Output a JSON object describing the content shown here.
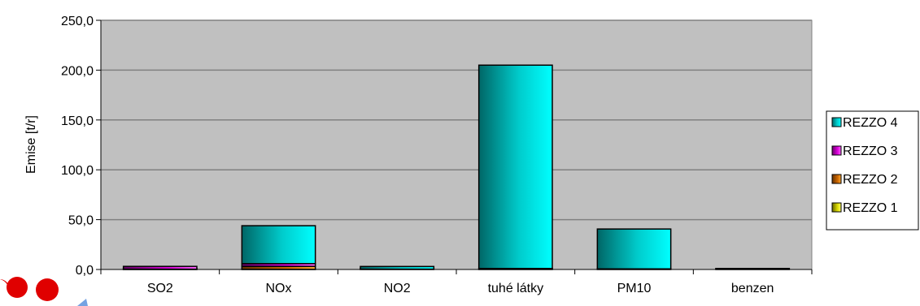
{
  "chart_data": {
    "type": "bar",
    "stacked": true,
    "categories": [
      "SO2",
      "NOx",
      "NO2",
      "tuhé látky",
      "PM10",
      "benzen"
    ],
    "series": [
      {
        "name": "REZZO 1",
        "color": "#FFFF00",
        "values": [
          0.1,
          0.1,
          0.0,
          0.0,
          0.0,
          0.0
        ]
      },
      {
        "name": "REZZO 2",
        "color": "#CC6600",
        "values": [
          0.2,
          3.0,
          0.0,
          0.5,
          0.3,
          0.0
        ]
      },
      {
        "name": "REZZO 3",
        "color": "#CC00CC",
        "values": [
          2.8,
          2.8,
          0.3,
          0.5,
          0.3,
          0.2
        ]
      },
      {
        "name": "REZZO 4",
        "color": "#00E5E5",
        "values": [
          0.0,
          38.0,
          2.7,
          204.0,
          40.0,
          0.8
        ]
      }
    ],
    "ylabel": "Emise [t/r]",
    "ylim": [
      0,
      250
    ],
    "yticks": [
      "0,0",
      "50,0",
      "100,0",
      "150,0",
      "200,0",
      "250,0"
    ],
    "grid": true,
    "legend_position": "right",
    "plot_background": "#C0C0C0"
  }
}
